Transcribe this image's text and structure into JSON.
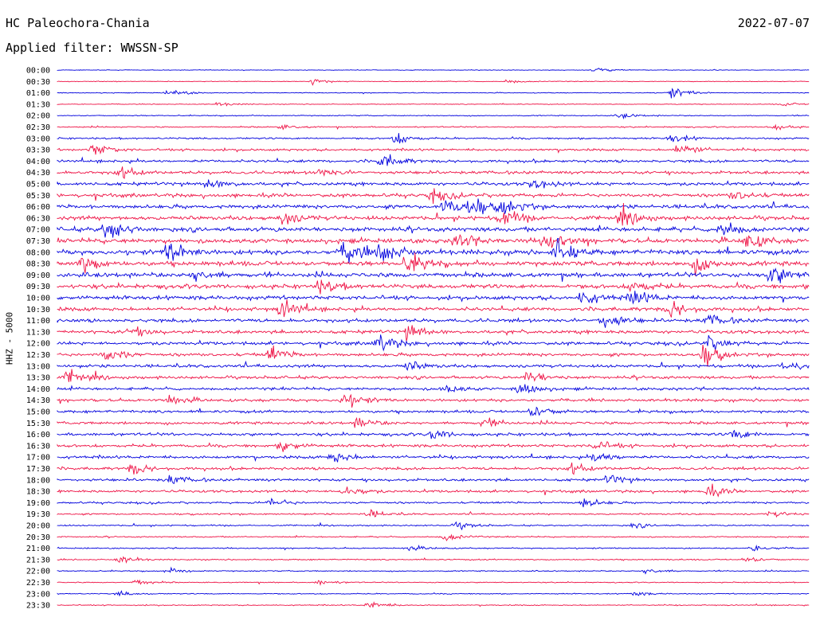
{
  "header": {
    "station": "HC Paleochora-Chania",
    "date": "2022-07-07",
    "filter": "Applied filter: WWSSN-SP",
    "channel": "HHZ - 5000"
  },
  "chart_data": {
    "type": "line",
    "title": "HC Paleochora-Chania",
    "ylabel": "HHZ - 5000",
    "trace_colors": [
      "#0000dd",
      "#ee1144"
    ],
    "x_range": [
      0,
      30
    ],
    "rows": [
      {
        "label": "00:00",
        "amp": 0.5,
        "events": [
          {
            "x": 21.5,
            "a": 1.1
          }
        ]
      },
      {
        "label": "00:30",
        "amp": 0.6,
        "events": [
          {
            "x": 10.2,
            "a": 1.3
          },
          {
            "x": 18.0,
            "a": 0.8
          }
        ]
      },
      {
        "label": "01:00",
        "amp": 0.6,
        "events": [
          {
            "x": 4.5,
            "a": 1.5
          },
          {
            "x": 24.5,
            "a": 2.3
          }
        ]
      },
      {
        "label": "01:30",
        "amp": 0.6,
        "events": [
          {
            "x": 6.5,
            "a": 0.8
          },
          {
            "x": 29.0,
            "a": 0.7
          }
        ]
      },
      {
        "label": "02:00",
        "amp": 0.8,
        "events": [
          {
            "x": 22.5,
            "a": 1.0
          }
        ]
      },
      {
        "label": "02:30",
        "amp": 1.0,
        "events": [
          {
            "x": 9.0,
            "a": 0.9
          },
          {
            "x": 28.5,
            "a": 1.2
          }
        ]
      },
      {
        "label": "03:00",
        "amp": 1.4,
        "events": [
          {
            "x": 13.5,
            "a": 2.6
          },
          {
            "x": 24.5,
            "a": 2.0
          }
        ]
      },
      {
        "label": "03:30",
        "amp": 1.8,
        "events": [
          {
            "x": 1.5,
            "a": 2.5
          },
          {
            "x": 24.8,
            "a": 3.0
          }
        ]
      },
      {
        "label": "04:00",
        "amp": 2.2,
        "events": [
          {
            "x": 13.0,
            "a": 3.5
          }
        ]
      },
      {
        "label": "04:30",
        "amp": 2.4,
        "events": [
          {
            "x": 2.5,
            "a": 2.5
          },
          {
            "x": 10.5,
            "a": 2.0
          }
        ]
      },
      {
        "label": "05:00",
        "amp": 2.6,
        "events": [
          {
            "x": 6.0,
            "a": 2.4
          },
          {
            "x": 19.0,
            "a": 2.2
          }
        ]
      },
      {
        "label": "05:30",
        "amp": 2.8,
        "events": [
          {
            "x": 15.0,
            "a": 2.6
          },
          {
            "x": 27.0,
            "a": 2.5
          }
        ]
      },
      {
        "label": "06:00",
        "amp": 3.0,
        "events": [
          {
            "x": 15.5,
            "a": 4.0
          },
          {
            "x": 16.5,
            "a": 3.8
          },
          {
            "x": 17.8,
            "a": 3.6
          }
        ]
      },
      {
        "label": "06:30",
        "amp": 3.2,
        "events": [
          {
            "x": 9.0,
            "a": 3.0
          },
          {
            "x": 17.8,
            "a": 4.0
          },
          {
            "x": 22.5,
            "a": 3.2
          }
        ]
      },
      {
        "label": "07:00",
        "amp": 3.4,
        "events": [
          {
            "x": 2.0,
            "a": 5.0
          },
          {
            "x": 26.5,
            "a": 3.8
          }
        ]
      },
      {
        "label": "07:30",
        "amp": 3.6,
        "events": [
          {
            "x": 16.0,
            "a": 3.5
          },
          {
            "x": 19.5,
            "a": 4.5
          },
          {
            "x": 27.5,
            "a": 3.5
          }
        ]
      },
      {
        "label": "08:00",
        "amp": 3.8,
        "events": [
          {
            "x": 4.5,
            "a": 4.5
          },
          {
            "x": 11.5,
            "a": 5.5
          },
          {
            "x": 13.0,
            "a": 5.0
          },
          {
            "x": 20.0,
            "a": 5.5
          }
        ]
      },
      {
        "label": "08:30",
        "amp": 3.8,
        "events": [
          {
            "x": 1.0,
            "a": 4.0
          },
          {
            "x": 14.0,
            "a": 4.5
          },
          {
            "x": 25.5,
            "a": 3.5
          }
        ]
      },
      {
        "label": "09:00",
        "amp": 3.6,
        "events": [
          {
            "x": 5.5,
            "a": 3.0
          },
          {
            "x": 28.5,
            "a": 4.5
          }
        ]
      },
      {
        "label": "09:30",
        "amp": 3.4,
        "events": [
          {
            "x": 10.5,
            "a": 3.0
          },
          {
            "x": 23.0,
            "a": 2.8
          }
        ]
      },
      {
        "label": "10:00",
        "amp": 3.2,
        "events": [
          {
            "x": 21.0,
            "a": 3.5
          },
          {
            "x": 23.0,
            "a": 3.2
          }
        ]
      },
      {
        "label": "10:30",
        "amp": 3.0,
        "events": [
          {
            "x": 9.0,
            "a": 4.0
          },
          {
            "x": 24.5,
            "a": 3.5
          }
        ]
      },
      {
        "label": "11:00",
        "amp": 2.8,
        "events": [
          {
            "x": 21.8,
            "a": 4.0
          },
          {
            "x": 26.0,
            "a": 2.5
          }
        ]
      },
      {
        "label": "11:30",
        "amp": 2.7,
        "events": [
          {
            "x": 14.0,
            "a": 3.5
          },
          {
            "x": 3.0,
            "a": 2.0
          }
        ]
      },
      {
        "label": "12:00",
        "amp": 2.6,
        "events": [
          {
            "x": 12.8,
            "a": 4.0
          },
          {
            "x": 26.0,
            "a": 3.0
          }
        ]
      },
      {
        "label": "12:30",
        "amp": 2.5,
        "events": [
          {
            "x": 2.0,
            "a": 3.0
          },
          {
            "x": 8.5,
            "a": 3.2
          },
          {
            "x": 25.8,
            "a": 4.5
          }
        ]
      },
      {
        "label": "13:00",
        "amp": 2.4,
        "events": [
          {
            "x": 29.0,
            "a": 2.5
          },
          {
            "x": 14.0,
            "a": 2.0
          }
        ]
      },
      {
        "label": "13:30",
        "amp": 2.3,
        "events": [
          {
            "x": 0.5,
            "a": 3.5
          },
          {
            "x": 18.8,
            "a": 2.8
          }
        ]
      },
      {
        "label": "14:00",
        "amp": 2.2,
        "events": [
          {
            "x": 18.5,
            "a": 3.0
          },
          {
            "x": 15.5,
            "a": 2.0
          }
        ]
      },
      {
        "label": "14:30",
        "amp": 2.2,
        "events": [
          {
            "x": 11.5,
            "a": 3.5
          },
          {
            "x": 4.5,
            "a": 2.2
          }
        ]
      },
      {
        "label": "15:00",
        "amp": 2.2,
        "events": [
          {
            "x": 19.0,
            "a": 2.5
          }
        ]
      },
      {
        "label": "15:30",
        "amp": 2.2,
        "events": [
          {
            "x": 12.0,
            "a": 2.2
          },
          {
            "x": 17.0,
            "a": 2.0
          }
        ]
      },
      {
        "label": "16:00",
        "amp": 2.3,
        "events": [
          {
            "x": 15.0,
            "a": 2.2
          },
          {
            "x": 27.0,
            "a": 2.2
          }
        ]
      },
      {
        "label": "16:30",
        "amp": 2.3,
        "events": [
          {
            "x": 9.0,
            "a": 2.0
          },
          {
            "x": 21.5,
            "a": 2.0
          }
        ]
      },
      {
        "label": "17:00",
        "amp": 2.3,
        "events": [
          {
            "x": 11.0,
            "a": 3.0
          },
          {
            "x": 21.5,
            "a": 2.5
          }
        ]
      },
      {
        "label": "17:30",
        "amp": 2.2,
        "events": [
          {
            "x": 3.0,
            "a": 2.5
          },
          {
            "x": 20.5,
            "a": 2.2
          }
        ]
      },
      {
        "label": "18:00",
        "amp": 2.1,
        "events": [
          {
            "x": 4.5,
            "a": 2.2
          },
          {
            "x": 22.0,
            "a": 2.2
          }
        ]
      },
      {
        "label": "18:30",
        "amp": 2.0,
        "events": [
          {
            "x": 11.5,
            "a": 2.5
          },
          {
            "x": 26.0,
            "a": 2.3
          }
        ]
      },
      {
        "label": "19:00",
        "amp": 1.6,
        "events": [
          {
            "x": 8.5,
            "a": 1.8
          },
          {
            "x": 21.0,
            "a": 2.0
          }
        ]
      },
      {
        "label": "19:30",
        "amp": 1.3,
        "events": [
          {
            "x": 12.5,
            "a": 1.5
          },
          {
            "x": 28.5,
            "a": 1.2
          }
        ]
      },
      {
        "label": "20:00",
        "amp": 1.1,
        "events": [
          {
            "x": 16.0,
            "a": 1.5
          },
          {
            "x": 23.0,
            "a": 1.0
          }
        ]
      },
      {
        "label": "20:30",
        "amp": 1.0,
        "events": [
          {
            "x": 15.5,
            "a": 2.0
          }
        ]
      },
      {
        "label": "21:00",
        "amp": 1.0,
        "events": [
          {
            "x": 27.8,
            "a": 1.5
          },
          {
            "x": 14.0,
            "a": 1.2
          }
        ]
      },
      {
        "label": "21:30",
        "amp": 1.0,
        "events": [
          {
            "x": 2.5,
            "a": 1.5
          },
          {
            "x": 27.5,
            "a": 1.2
          }
        ]
      },
      {
        "label": "22:00",
        "amp": 0.9,
        "events": [
          {
            "x": 4.5,
            "a": 1.3
          },
          {
            "x": 23.5,
            "a": 1.5
          }
        ]
      },
      {
        "label": "22:30",
        "amp": 0.8,
        "events": [
          {
            "x": 3.2,
            "a": 1.2
          },
          {
            "x": 10.5,
            "a": 1.0
          }
        ]
      },
      {
        "label": "23:00",
        "amp": 0.8,
        "events": [
          {
            "x": 2.5,
            "a": 1.0
          },
          {
            "x": 23.0,
            "a": 1.0
          }
        ]
      },
      {
        "label": "23:30",
        "amp": 0.8,
        "events": [
          {
            "x": 12.5,
            "a": 1.8
          }
        ]
      }
    ]
  }
}
